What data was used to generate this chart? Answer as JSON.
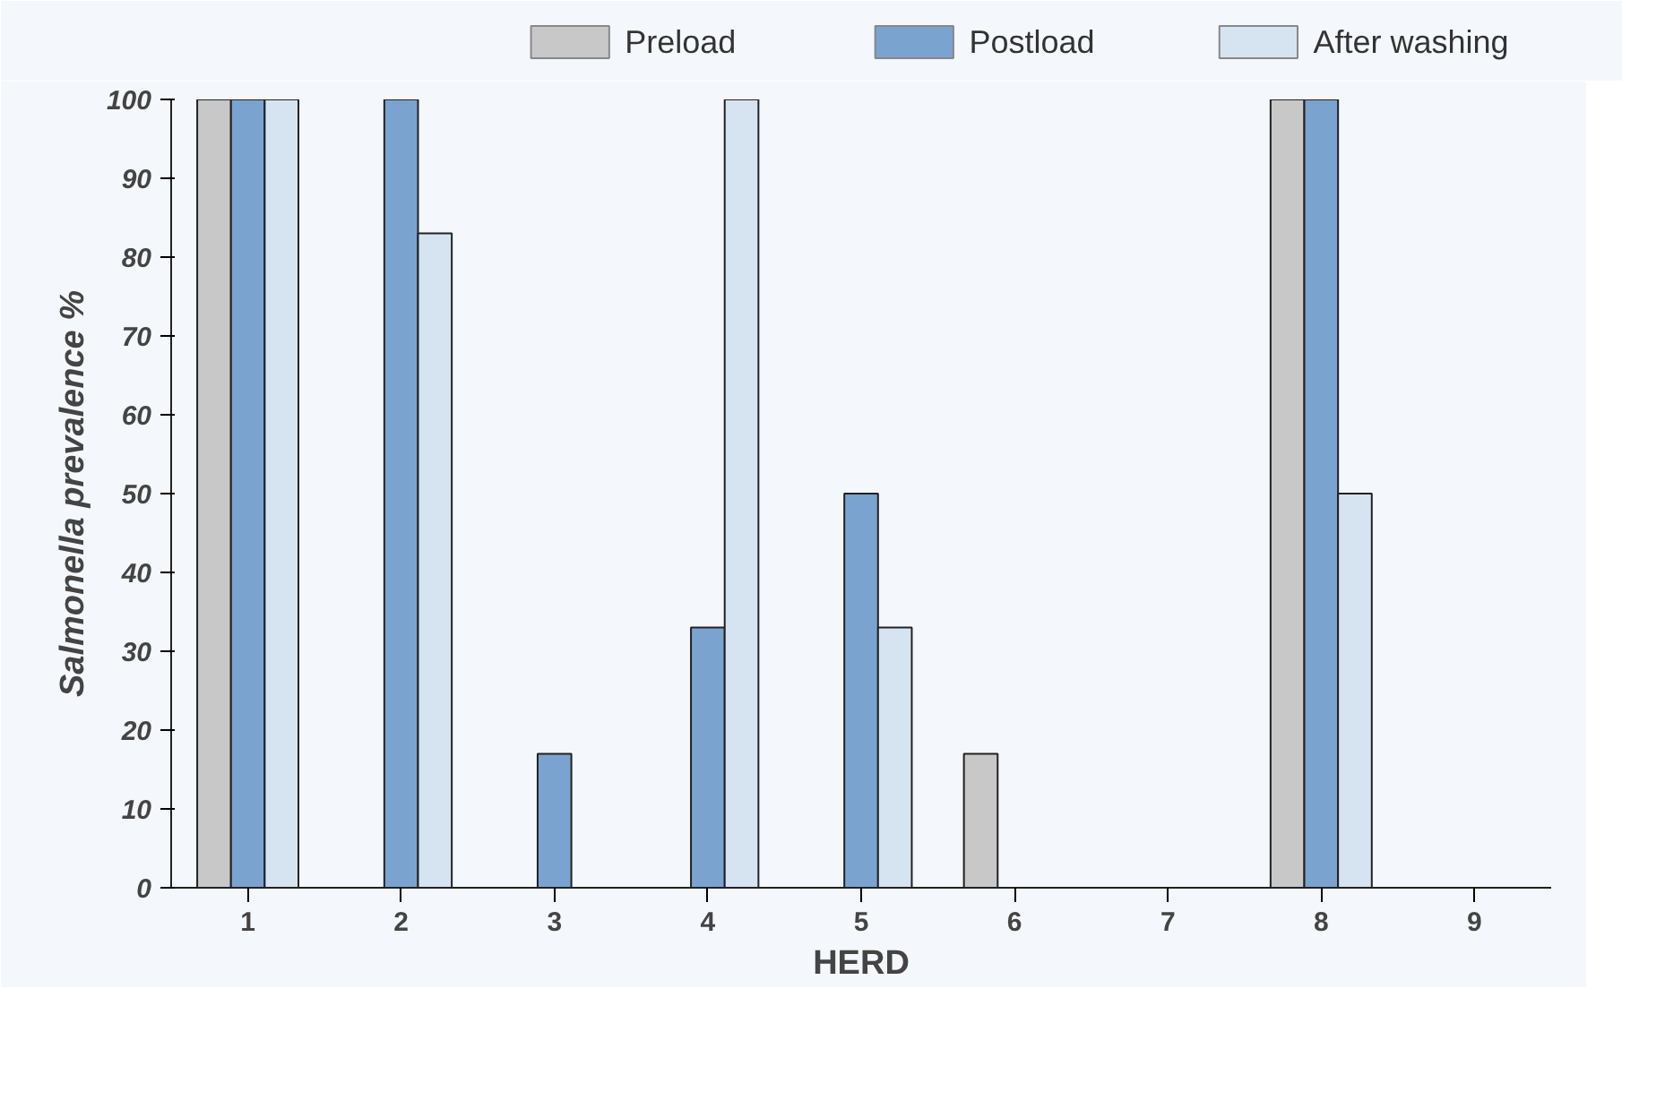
{
  "chart_data": {
    "type": "bar",
    "xlabel": "HERD",
    "ylabel": "Salmonella prevalence %",
    "categories": [
      "1",
      "2",
      "3",
      "4",
      "5",
      "6",
      "7",
      "8",
      "9"
    ],
    "series": [
      {
        "name": "Preload",
        "color": "#c8c8c8",
        "values": [
          100,
          0,
          0,
          0,
          0,
          17,
          0,
          100,
          0
        ]
      },
      {
        "name": "Postload",
        "color": "#7ba3cf",
        "values": [
          100,
          100,
          17,
          33,
          50,
          0,
          0,
          100,
          0
        ]
      },
      {
        "name": "After washing",
        "color": "#d6e4f2",
        "values": [
          100,
          83,
          0,
          100,
          33,
          0,
          0,
          50,
          0
        ]
      }
    ],
    "ylim": [
      0,
      100
    ],
    "yticks": [
      0,
      10,
      20,
      30,
      40,
      50,
      60,
      70,
      80,
      90,
      100
    ],
    "grid": false,
    "legend": "top"
  }
}
